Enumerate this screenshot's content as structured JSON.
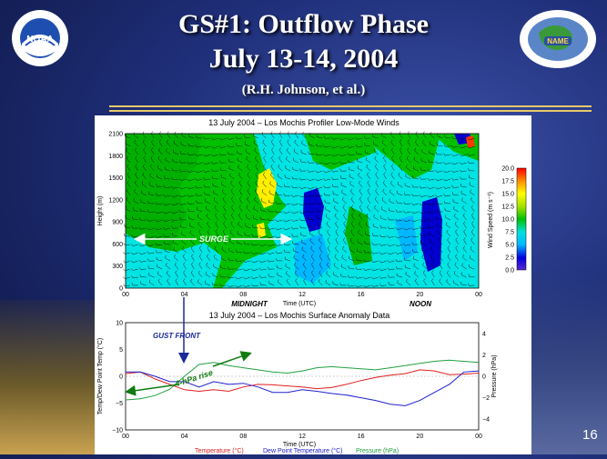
{
  "slide": {
    "title_line1": "GS#1: Outflow Phase",
    "title_line2": "July 13-14, 2004",
    "credit": "(R.H. Johnson, et al.)",
    "page_number": "16"
  },
  "logos": {
    "noaa_text": "NOAA",
    "name_text": "NAME"
  },
  "colors": {
    "accent_rule": "#e8c96a",
    "temperature": "#e02020",
    "dewpoint": "#2020d0",
    "pressure": "#20a040",
    "annotation_green": "#107a10",
    "annotation_blue": "#1a2a9a"
  },
  "annotations": {
    "surge": "SURGE",
    "gust_front": "GUST FRONT",
    "pressure_rise": "4-hPa rise",
    "midnight": "MIDNIGHT",
    "noon": "NOON"
  },
  "chart_data": [
    {
      "type": "heatmap",
      "title": "13 July 2004 – Los Mochis Profiler Low-Mode Winds",
      "xlabel": "Time (UTC)",
      "ylabel": "Height (m)",
      "x_ticks": [
        "00",
        "04",
        "08",
        "12",
        "16",
        "20",
        "00"
      ],
      "y_ticks": [
        "0",
        "300",
        "600",
        "900",
        "1200",
        "1500",
        "1800",
        "2100"
      ],
      "xlim": [
        0,
        24
      ],
      "ylim": [
        0,
        2100
      ],
      "colorbar": {
        "label": "Wind Speed (m s⁻¹)",
        "ticks": [
          "0.0",
          "2.5",
          "5.0",
          "7.5",
          "10.0",
          "12.5",
          "15.0",
          "17.5",
          "20.0"
        ],
        "range": [
          0,
          20
        ]
      }
    },
    {
      "type": "line",
      "title": "13 July 2004 – Los Mochis Surface Anomaly Data",
      "xlabel": "Time (UTC)",
      "ylabel": "Temp/Dew Point Temp (°C)",
      "ylabel_right": "Pressure (hPa)",
      "x_ticks": [
        "00",
        "04",
        "08",
        "12",
        "16",
        "20",
        "00"
      ],
      "y_ticks": [
        "−10",
        "−5",
        "0",
        "5",
        "10"
      ],
      "y_ticks_right": [
        "−4",
        "−2",
        "0",
        "2",
        "4"
      ],
      "xlim": [
        0,
        24
      ],
      "ylim": [
        -10,
        10
      ],
      "ylim_right": [
        -5,
        5
      ],
      "series": [
        {
          "name": "Temperature (°C)",
          "x": [
            0,
            1,
            2,
            3,
            4,
            5,
            6,
            7,
            8,
            9,
            10,
            11,
            12,
            13,
            14,
            15,
            16,
            17,
            18,
            19,
            20,
            21,
            22,
            23,
            24
          ],
          "values": [
            0.5,
            0.8,
            -0.5,
            -1.5,
            -2.5,
            -2.8,
            -2.5,
            -2.8,
            -2.0,
            -1.5,
            -1.6,
            -1.8,
            -2.0,
            -2.3,
            -2.1,
            -1.5,
            -0.8,
            -0.2,
            0.2,
            0.5,
            1.2,
            1.0,
            0.3,
            0.4,
            0.6
          ]
        },
        {
          "name": "Dew Point Temperature (°C)",
          "x": [
            0,
            1,
            2,
            3,
            4,
            5,
            6,
            7,
            8,
            9,
            10,
            11,
            12,
            13,
            14,
            15,
            16,
            17,
            18,
            19,
            20,
            21,
            22,
            23,
            24
          ],
          "values": [
            0.8,
            0.8,
            0.0,
            -1.0,
            -1.0,
            -2.0,
            -1.0,
            -1.5,
            -1.3,
            -2.0,
            -3.0,
            -3.0,
            -2.5,
            -2.8,
            -3.2,
            -3.5,
            -4.0,
            -4.5,
            -5.2,
            -5.5,
            -4.5,
            -3.0,
            -1.5,
            0.8,
            1.0
          ]
        },
        {
          "name": "Pressure (hPa)",
          "x": [
            0,
            1,
            2,
            3,
            4,
            5,
            6,
            7,
            8,
            9,
            10,
            11,
            12,
            13,
            14,
            15,
            16,
            17,
            18,
            19,
            20,
            21,
            22,
            23,
            24
          ],
          "values": [
            -2.2,
            -2.1,
            -1.8,
            -1.2,
            0.0,
            1.1,
            1.3,
            1.0,
            0.8,
            0.6,
            0.4,
            0.3,
            0.5,
            0.8,
            0.9,
            0.8,
            0.7,
            0.6,
            0.8,
            1.0,
            1.2,
            1.4,
            1.5,
            1.4,
            1.3
          ]
        }
      ]
    }
  ]
}
